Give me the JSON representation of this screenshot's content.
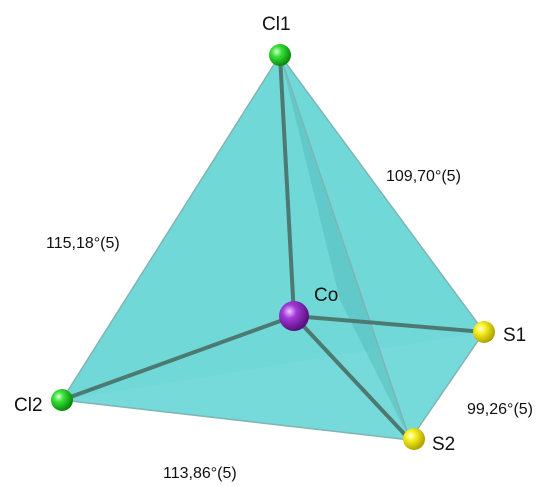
{
  "atoms": {
    "cl1": {
      "label": "Cl1",
      "element": "Cl",
      "color": "#1fcf1f"
    },
    "cl2": {
      "label": "Cl2",
      "element": "Cl",
      "color": "#1fcf1f"
    },
    "co": {
      "label": "Co",
      "element": "Co",
      "color": "#9b2fd0"
    },
    "s1": {
      "label": "S1",
      "element": "S",
      "color": "#f2ee10"
    },
    "s2": {
      "label": "S2",
      "element": "S",
      "color": "#f2ee10"
    }
  },
  "angles": {
    "cl1_co_s1": "109,70°(5)",
    "cl1_co_cl2": "115,18°(5)",
    "s1_co_s2": "99,26°(5)",
    "cl2_co_s2": "113,86°(5)"
  },
  "colors": {
    "face": "#5fd3d3",
    "face_dark": "#4cb9b9",
    "bond": "#4c7a72",
    "edge": "#7aa9a6"
  }
}
